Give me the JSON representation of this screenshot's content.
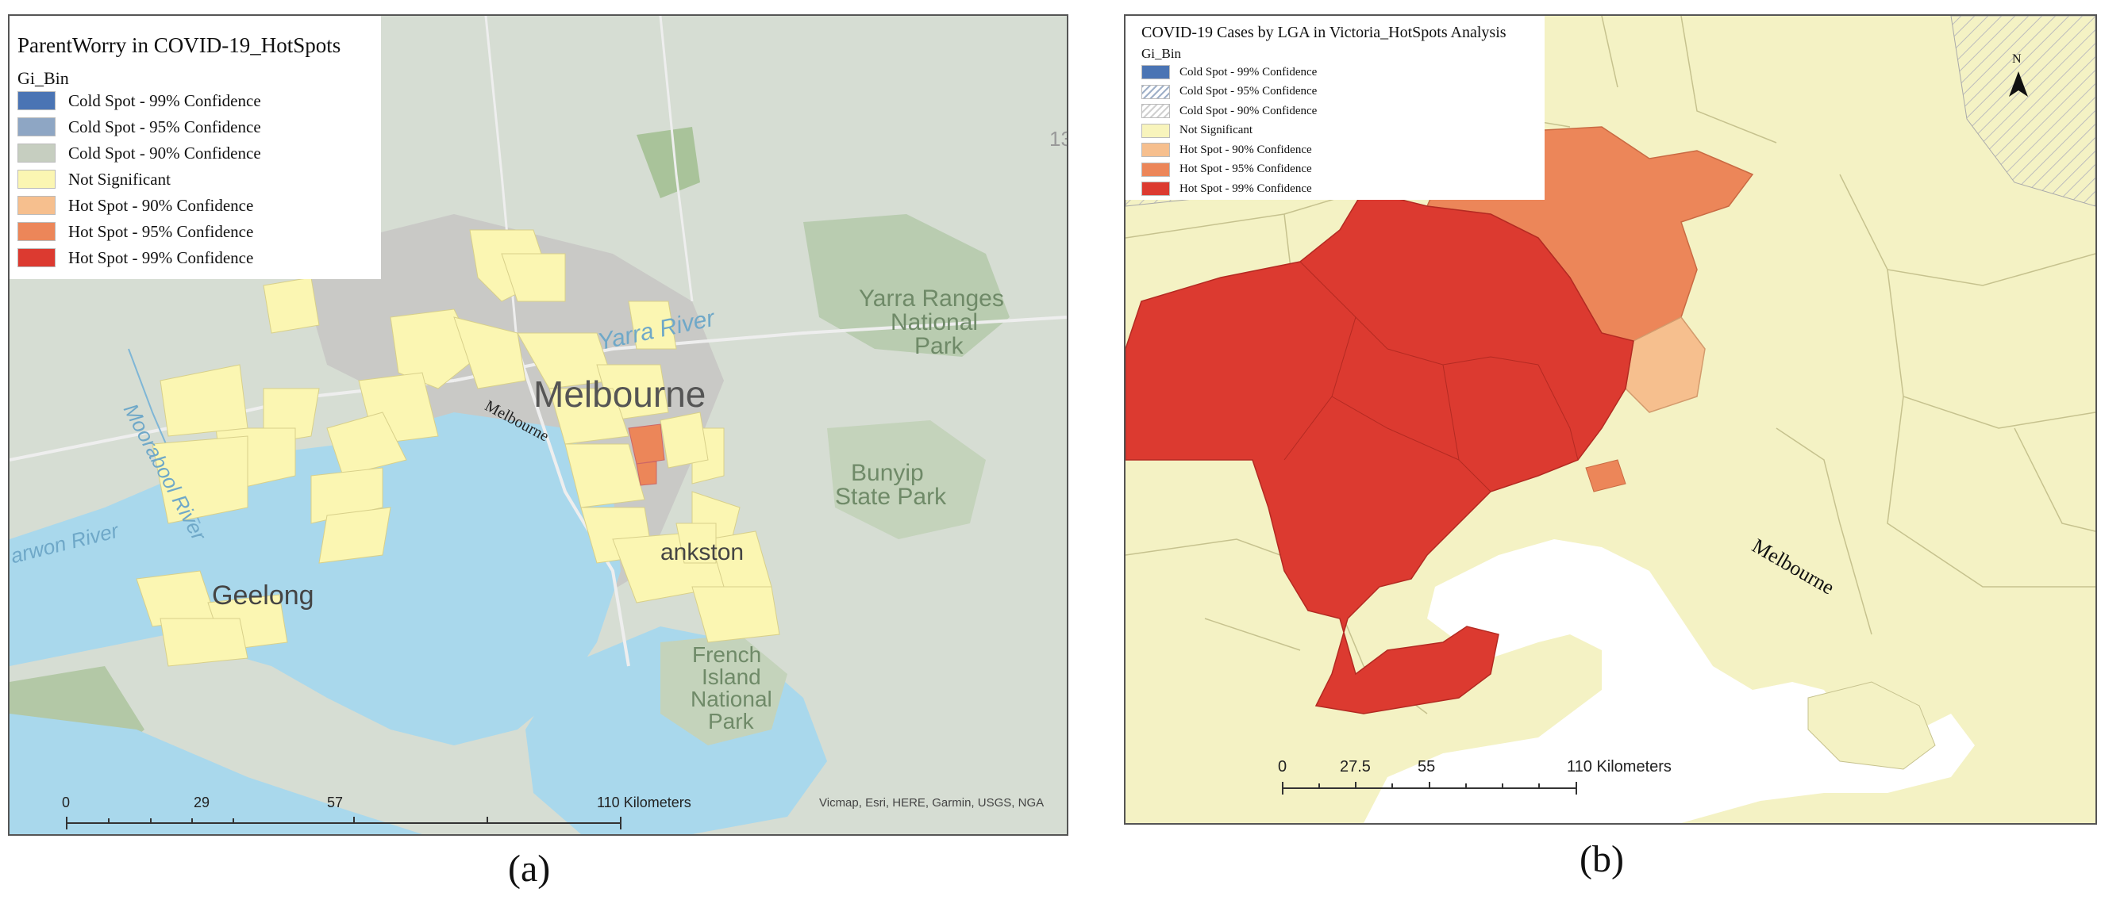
{
  "panel_a": {
    "legend": {
      "title": "ParentWorry in COVID-19_HotSpots",
      "field": "Gi_Bin",
      "items": [
        {
          "label": "Cold Spot - 99% Confidence",
          "color": "#4a74b4",
          "pattern": "solid"
        },
        {
          "label": "Cold Spot - 95% Confidence",
          "color": "#8ea6c4",
          "pattern": "solid"
        },
        {
          "label": "Cold Spot - 90% Confidence",
          "color": "#c6cec0",
          "pattern": "solid"
        },
        {
          "label": "Not Significant",
          "color": "#fbf6b2",
          "pattern": "solid"
        },
        {
          "label": "Hot Spot - 90% Confidence",
          "color": "#f6bf8e",
          "pattern": "solid"
        },
        {
          "label": "Hot Spot - 95% Confidence",
          "color": "#ec8659",
          "pattern": "solid"
        },
        {
          "label": "Hot Spot - 99% Confidence",
          "color": "#dc3a30",
          "pattern": "solid"
        }
      ]
    },
    "places": {
      "yarra_river": "Yarra River",
      "melbourne_big": "Melbourne",
      "melbourne_small": "Melbourne",
      "yarra_ranges_1": "Yarra Ranges",
      "yarra_ranges_2": "National",
      "yarra_ranges_3": "Park",
      "bunyip_1": "Bunyip",
      "bunyip_2": "State Park",
      "moorabool": "Moorabool River",
      "barwon": "arwon River",
      "geelong": "Geelong",
      "frankston": "ankston",
      "french_1": "French",
      "french_2": "Island",
      "french_3": "National",
      "french_4": "Park",
      "edge_13": "13"
    },
    "scale": {
      "ticks": [
        "0",
        "29",
        "57",
        "110 Kilometers"
      ]
    },
    "attribution": "Vicmap, Esri, HERE, Garmin, USGS, NGA",
    "caption": "(a)"
  },
  "panel_b": {
    "legend": {
      "title": "COVID-19 Cases by LGA in Victoria_HotSpots Analysis",
      "field": "Gi_Bin",
      "items": [
        {
          "label": "Cold Spot - 99% Confidence",
          "color": "#4a74b4",
          "pattern": "solid"
        },
        {
          "label": "Cold Spot - 95% Confidence",
          "color": "#9fb0c8",
          "pattern": "hatch"
        },
        {
          "label": "Cold Spot - 90% Confidence",
          "color": "#d0d0d0",
          "pattern": "hatch"
        },
        {
          "label": "Not Significant",
          "color": "#f8f4bc",
          "pattern": "solid"
        },
        {
          "label": "Hot Spot - 90% Confidence",
          "color": "#f6bf8e",
          "pattern": "solid"
        },
        {
          "label": "Hot Spot - 95% Confidence",
          "color": "#ec8659",
          "pattern": "solid"
        },
        {
          "label": "Hot Spot - 99% Confidence",
          "color": "#dc3a30",
          "pattern": "solid"
        }
      ]
    },
    "north_label": "N",
    "place": "Melbourne",
    "scale": {
      "ticks": [
        "0",
        "27.5",
        "55",
        "110 Kilometers"
      ]
    },
    "caption": "(b)"
  }
}
